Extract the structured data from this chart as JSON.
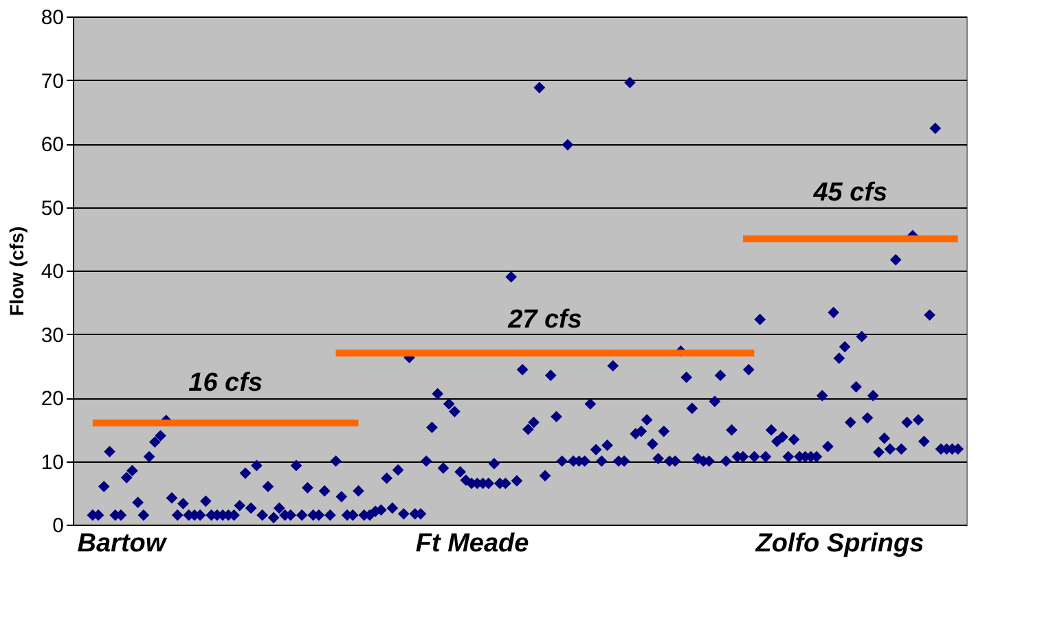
{
  "chart_data": {
    "type": "scatter",
    "ylabel": "Flow (cfs)",
    "ylim": [
      0,
      80
    ],
    "yticks": [
      0,
      10,
      20,
      30,
      40,
      50,
      60,
      70,
      80
    ],
    "grid": "y",
    "categories": [
      null,
      null,
      null,
      null,
      null,
      "Bartow",
      null,
      null,
      null,
      null,
      null,
      null,
      null,
      null,
      null,
      null,
      null,
      null,
      null,
      null,
      null,
      null,
      null,
      null,
      null,
      null,
      null,
      null,
      null,
      null,
      null,
      null,
      null,
      null,
      null,
      null,
      null,
      null,
      null,
      null,
      null,
      null,
      null,
      null,
      null,
      null,
      null,
      null,
      null,
      null,
      null,
      null,
      null,
      null,
      null,
      null,
      null,
      null,
      null,
      null,
      null,
      null,
      null,
      null,
      null,
      null,
      null,
      "Ft Meade",
      null,
      null,
      null,
      null,
      null,
      null,
      null,
      null,
      null,
      null,
      null,
      null,
      null,
      null,
      null,
      null,
      null,
      null,
      null,
      null,
      null,
      null,
      null,
      null,
      null,
      null,
      null,
      null,
      null,
      null,
      null,
      null,
      null,
      null,
      null,
      null,
      null,
      null,
      null,
      null,
      null,
      null,
      null,
      null,
      null,
      null,
      null,
      null,
      null,
      null,
      null,
      null,
      null,
      null,
      null,
      null,
      null,
      null,
      null,
      null,
      null,
      null,
      null,
      null,
      "Zolfo Springs",
      null,
      null,
      null,
      null,
      null,
      null,
      null,
      null,
      null,
      null,
      null,
      null,
      null,
      null,
      null,
      null,
      null,
      null,
      null,
      null,
      null
    ],
    "series": [
      {
        "marker": "diamond",
        "color": "#000080",
        "values": [
          1.5,
          1.5,
          6,
          11.5,
          1.5,
          1.5,
          7.4,
          8.5,
          3.5,
          1.5,
          10.7,
          13,
          14,
          16.4,
          4.2,
          1.5,
          3.3,
          1.5,
          1.5,
          1.5,
          3.7,
          1.5,
          1.5,
          1.5,
          1.5,
          1.5,
          3,
          8.1,
          2.6,
          9.3,
          1.5,
          6,
          1.1,
          2.6,
          1.5,
          1.5,
          9.3,
          1.5,
          5.8,
          1.5,
          1.5,
          5.3,
          1.5,
          10,
          4.4,
          1.5,
          1.5,
          5.3,
          1.5,
          1.5,
          2.1,
          2.3,
          7.3,
          2.6,
          8.6,
          1.7,
          26.3,
          1.7,
          1.7,
          10,
          15.3,
          20.6,
          8.9,
          19,
          17.8,
          8.3,
          7,
          6.5,
          6.5,
          6.5,
          6.5,
          9.6,
          6.5,
          6.5,
          39,
          6.9,
          24.4,
          15,
          16.1,
          68.8,
          7.7,
          23.5,
          17,
          10,
          59.8,
          10,
          10,
          10,
          19,
          11.8,
          10,
          12.5,
          25,
          10,
          10,
          69.6,
          14.3,
          14.7,
          16.5,
          12.7,
          10.4,
          14.7,
          10,
          10,
          27.3,
          23.2,
          18.3,
          10.4,
          10,
          10,
          19.4,
          23.5,
          10,
          14.9,
          10.7,
          10.7,
          24.4,
          10.7,
          32.3,
          10.7,
          14.9,
          13.1,
          13.8,
          10.7,
          13.4,
          10.7,
          10.7,
          10.7,
          10.7,
          20.3,
          12.3,
          33.4,
          26.2,
          28,
          16.1,
          21.7,
          29.6,
          16.8,
          20.3,
          11.4,
          13.6,
          11.9,
          41.7,
          11.9,
          16.1,
          45.5,
          16.5,
          13.1,
          33,
          62.4,
          11.9,
          11.9,
          11.9,
          11.9
        ]
      },
      {
        "type": "line",
        "name": "16 cfs",
        "color": "#ff6600",
        "values": [
          16,
          null,
          null,
          null,
          null,
          null,
          null,
          null,
          null,
          null,
          null,
          null,
          null,
          null,
          null,
          null,
          null,
          null,
          null,
          null,
          null,
          null,
          null,
          null,
          null,
          null,
          null,
          null,
          null,
          null,
          null,
          null,
          null,
          null,
          null,
          null,
          null,
          null,
          null,
          null,
          null,
          null,
          null,
          null,
          null,
          null,
          null,
          16,
          null,
          null,
          null,
          null,
          null,
          null,
          null,
          null,
          null,
          null,
          null,
          null,
          null,
          null,
          null,
          null,
          null,
          null,
          null,
          null,
          null,
          null,
          null,
          null,
          null,
          null,
          null,
          null,
          null,
          null,
          null,
          null,
          null,
          null,
          null,
          null,
          null,
          null,
          null,
          null,
          null,
          null,
          null,
          null,
          null,
          null,
          null,
          null,
          null,
          null,
          null,
          null,
          null,
          null,
          null,
          null,
          null,
          null,
          null,
          null,
          null,
          null,
          null,
          null,
          null,
          null,
          null,
          null,
          null,
          null,
          null,
          null,
          null,
          null,
          null,
          null,
          null,
          null,
          null,
          null,
          null,
          null,
          null,
          null,
          null,
          null,
          null,
          null,
          null,
          null,
          null,
          null,
          null,
          null,
          null,
          null,
          null,
          null,
          null,
          null,
          null,
          null,
          null,
          null,
          null,
          null
        ]
      },
      {
        "type": "line",
        "name": "27 cfs",
        "color": "#ff6600",
        "values": [
          null,
          null,
          null,
          null,
          null,
          null,
          null,
          null,
          null,
          null,
          null,
          null,
          null,
          null,
          null,
          null,
          null,
          null,
          null,
          null,
          null,
          null,
          null,
          null,
          null,
          null,
          null,
          null,
          null,
          null,
          null,
          null,
          null,
          null,
          null,
          null,
          null,
          null,
          null,
          null,
          null,
          null,
          null,
          27,
          null,
          null,
          null,
          null,
          null,
          null,
          null,
          null,
          null,
          null,
          null,
          null,
          null,
          null,
          null,
          null,
          null,
          null,
          null,
          null,
          null,
          null,
          null,
          null,
          null,
          null,
          null,
          null,
          null,
          null,
          null,
          null,
          null,
          null,
          null,
          null,
          null,
          null,
          null,
          null,
          null,
          null,
          null,
          null,
          null,
          null,
          null,
          null,
          null,
          null,
          null,
          null,
          null,
          null,
          null,
          null,
          null,
          null,
          null,
          null,
          null,
          null,
          null,
          null,
          null,
          null,
          null,
          null,
          null,
          null,
          null,
          null,
          null,
          27,
          null,
          null,
          null,
          null,
          null,
          null,
          null,
          null,
          null,
          null,
          null,
          null,
          null,
          null,
          null,
          null,
          null,
          null,
          null,
          null,
          null,
          null,
          null,
          null,
          null,
          null,
          null,
          null,
          null,
          null,
          null,
          null,
          null,
          null,
          null,
          null
        ]
      },
      {
        "type": "line",
        "name": "45 cfs",
        "color": "#ff6600",
        "values": [
          null,
          null,
          null,
          null,
          null,
          null,
          null,
          null,
          null,
          null,
          null,
          null,
          null,
          null,
          null,
          null,
          null,
          null,
          null,
          null,
          null,
          null,
          null,
          null,
          null,
          null,
          null,
          null,
          null,
          null,
          null,
          null,
          null,
          null,
          null,
          null,
          null,
          null,
          null,
          null,
          null,
          null,
          null,
          null,
          null,
          null,
          null,
          null,
          null,
          null,
          null,
          null,
          null,
          null,
          null,
          null,
          null,
          null,
          null,
          null,
          null,
          null,
          null,
          null,
          null,
          null,
          null,
          null,
          null,
          null,
          null,
          null,
          null,
          null,
          null,
          null,
          null,
          null,
          null,
          null,
          null,
          null,
          null,
          null,
          null,
          null,
          null,
          null,
          null,
          null,
          null,
          null,
          null,
          null,
          null,
          null,
          null,
          null,
          null,
          null,
          null,
          null,
          null,
          null,
          null,
          null,
          null,
          null,
          null,
          null,
          null,
          null,
          null,
          null,
          null,
          45,
          null,
          null,
          null,
          null,
          null,
          null,
          null,
          null,
          null,
          null,
          null,
          null,
          null,
          null,
          null,
          null,
          null,
          null,
          null,
          null,
          null,
          null,
          null,
          null,
          null,
          null,
          null,
          null,
          null,
          null,
          null,
          null,
          null,
          null,
          null,
          null,
          null,
          45
        ]
      }
    ]
  }
}
